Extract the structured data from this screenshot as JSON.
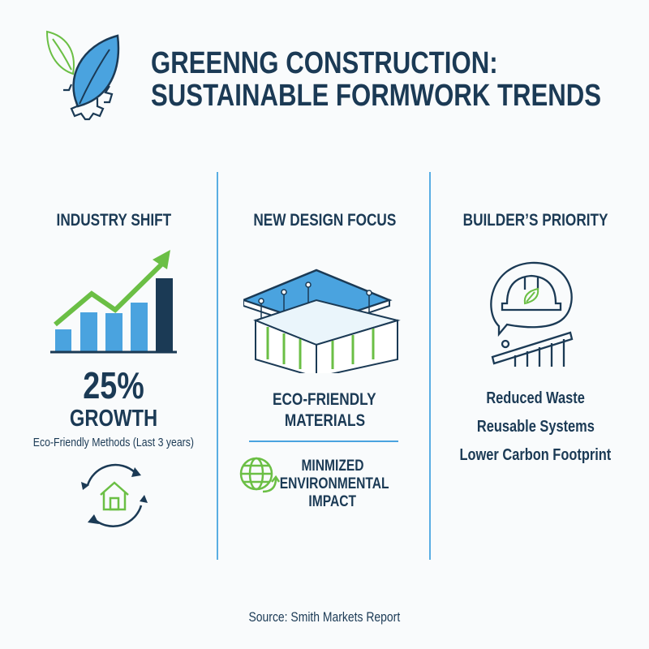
{
  "header": {
    "title_line1": "GREENNG CONSTRUCTION:",
    "title_line2": "SUSTAINABLE FORMWORK TRENDS",
    "logo_icon": "leaf-gear-icon"
  },
  "columns": [
    {
      "heading": "INDUSTRY SHIFT",
      "icon": "growth-bar-chart-icon",
      "stat_value": "25%",
      "stat_label": "GROWTH",
      "stat_caption": "Eco-Friendly Methods (Last 3 years)",
      "footer_icon": "house-recycle-icon"
    },
    {
      "heading": "NEW DESIGN FOCUS",
      "icon": "formwork-structure-icon",
      "feature1_line1": "ECO-FRIENDLY",
      "feature1_line2": "MATERIALS",
      "feature2_icon": "globe-recycle-icon",
      "feature2_line1": "MINMIZED",
      "feature2_line2": "ENVIRONMENTAL",
      "feature2_line3": "IMPACT"
    },
    {
      "heading": "BUILDER’S PRIORITY",
      "icon": "hardhat-thought-icon",
      "items": [
        "Reduced Waste",
        "Reusable Systems",
        "Lower Carbon Footprint"
      ]
    }
  ],
  "footer": {
    "source": "Source: Smith Markets Report"
  },
  "colors": {
    "navy": "#1b3a55",
    "blue": "#4aa3df",
    "green": "#6bbf45",
    "background": "#f9fbfc"
  }
}
